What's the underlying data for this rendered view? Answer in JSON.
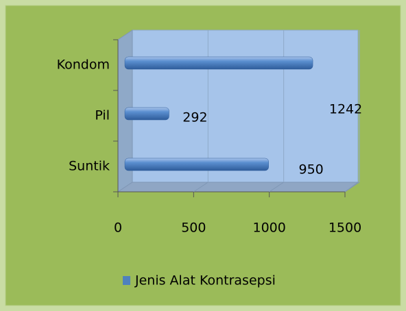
{
  "chart_data": {
    "type": "bar",
    "orientation": "horizontal",
    "categories": [
      "Kondom",
      "Pil",
      "Suntik"
    ],
    "series": [
      {
        "name": "Jenis Alat Kontrasepsi",
        "color": "#4f81bd",
        "values": [
          1242,
          292,
          950
        ]
      }
    ],
    "xlim": [
      0,
      1500
    ],
    "xticks": [
      0,
      500,
      1000,
      1500
    ],
    "grid": true,
    "legend": "bottom"
  }
}
